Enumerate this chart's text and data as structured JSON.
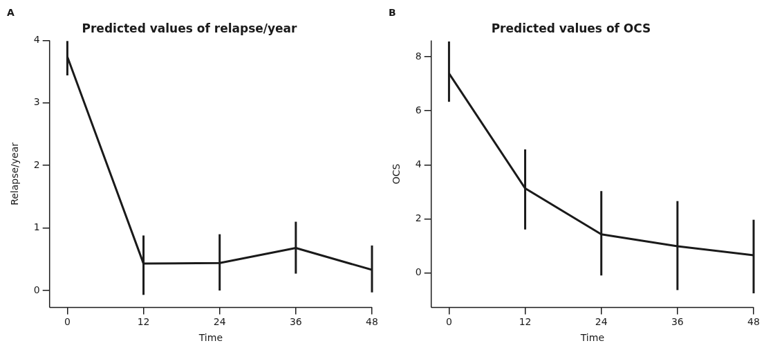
{
  "chart_data": [
    {
      "type": "line",
      "title": "Predicted values of relapse/year",
      "xlabel": "Time",
      "ylabel": "Relapse/year",
      "annotations": [
        "A"
      ],
      "x": [
        0,
        12,
        24,
        36,
        48
      ],
      "series": [
        {
          "color": "#1a1a1a",
          "values": [
            3.74,
            0.43,
            0.44,
            0.68,
            0.33
          ],
          "errors": [
            [
              3.44,
              3.99
            ],
            [
              -0.07,
              0.88
            ],
            [
              0.0,
              0.9
            ],
            [
              0.27,
              1.1
            ],
            [
              -0.03,
              0.72
            ]
          ]
        }
      ],
      "xlim": [
        -2.8,
        48
      ],
      "xticks": [
        0,
        12,
        24,
        36,
        48
      ],
      "ylim": [
        -0.27,
        4
      ],
      "yticks": [
        0,
        1,
        2,
        3,
        4
      ],
      "grid": false,
      "legend": false,
      "marker": "none",
      "line_style": "solid"
    },
    {
      "type": "line",
      "title": "Predicted values of OCS",
      "xlabel": "Time",
      "ylabel": "OCS",
      "annotations": [
        "B"
      ],
      "x": [
        0,
        12,
        24,
        36,
        48
      ],
      "series": [
        {
          "color": "#1a1a1a",
          "values": [
            7.38,
            3.13,
            1.43,
            0.99,
            0.66
          ],
          "errors": [
            [
              6.33,
              8.56
            ],
            [
              1.61,
              4.57
            ],
            [
              -0.09,
              3.03
            ],
            [
              -0.63,
              2.66
            ],
            [
              -0.75,
              1.97
            ]
          ]
        }
      ],
      "xlim": [
        -2.8,
        48
      ],
      "xticks": [
        0,
        12,
        24,
        36,
        48
      ],
      "ylim": [
        -1.27,
        8.6
      ],
      "yticks": [
        0,
        2,
        4,
        6,
        8
      ],
      "grid": false,
      "legend": false,
      "marker": "none",
      "line_style": "solid"
    }
  ]
}
